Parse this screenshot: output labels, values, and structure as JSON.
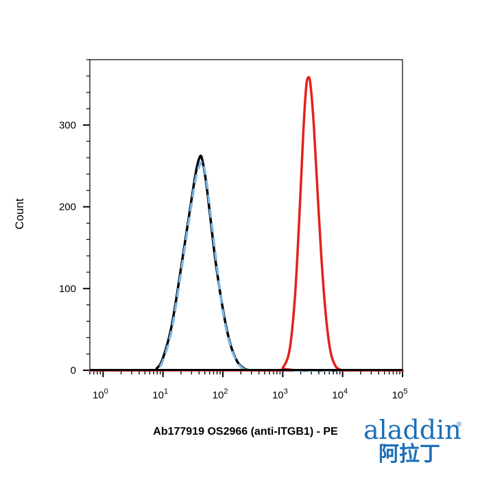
{
  "chart_data": {
    "type": "line",
    "xlabel": "Ab177919 OS2966 (anti-ITGB1) - PE",
    "ylabel": "Count",
    "x_scale": "log",
    "xlim": [
      0.6,
      100000
    ],
    "ylim": [
      0,
      380
    ],
    "y_ticks": [
      0,
      100,
      200,
      300
    ],
    "x_tick_labels": [
      {
        "base": "10",
        "exp": "0",
        "value": 1
      },
      {
        "base": "10",
        "exp": "1",
        "value": 10
      },
      {
        "base": "10",
        "exp": "2",
        "value": 100
      },
      {
        "base": "10",
        "exp": "3",
        "value": 1000
      },
      {
        "base": "10",
        "exp": "4",
        "value": 10000
      },
      {
        "base": "10",
        "exp": "5",
        "value": 100000
      }
    ],
    "grid": false,
    "series": [
      {
        "color": "#000000",
        "style": "solid",
        "x": [
          0.6,
          6,
          8,
          10,
          14,
          20,
          28,
          36,
          42,
          46,
          52,
          60,
          75,
          100,
          130,
          170,
          220,
          300,
          1000,
          10000,
          100000
        ],
        "y": [
          0,
          0,
          3,
          15,
          55,
          125,
          195,
          245,
          262,
          255,
          232,
          195,
          135,
          75,
          35,
          12,
          3,
          0,
          0,
          0,
          0
        ]
      },
      {
        "color": "#7ab6e6",
        "style": "dashed",
        "x": [
          0.6,
          6,
          8,
          10,
          14,
          20,
          28,
          36,
          44,
          48,
          54,
          62,
          78,
          100,
          130,
          170,
          220,
          300,
          1000,
          10000,
          100000
        ],
        "y": [
          0,
          0,
          2,
          12,
          50,
          120,
          190,
          238,
          255,
          250,
          228,
          192,
          132,
          72,
          33,
          11,
          2,
          0,
          0,
          0,
          0
        ]
      },
      {
        "color": "#e3211c",
        "style": "solid",
        "x": [
          0.6,
          800,
          1000,
          1300,
          1600,
          1900,
          2200,
          2450,
          2650,
          2900,
          3300,
          3800,
          4400,
          5200,
          6200,
          7500,
          9000,
          11000,
          100000
        ],
        "y": [
          0,
          0,
          3,
          25,
          90,
          190,
          290,
          345,
          358,
          350,
          300,
          220,
          140,
          70,
          25,
          6,
          1,
          0,
          0
        ]
      }
    ]
  },
  "logo": {
    "latin": "aladdin",
    "cjk": "阿拉丁",
    "reg": "®"
  }
}
